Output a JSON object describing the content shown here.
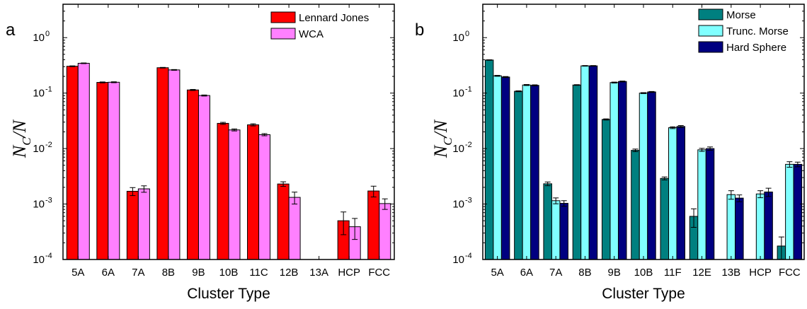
{
  "chart_data": [
    {
      "panel_letter": "a",
      "type": "bar",
      "scale": "log",
      "xlabel": "Cluster Type",
      "ylabel": {
        "main": "N",
        "sub": "C",
        "rest": "/N"
      },
      "ylim": [
        0.0001,
        4
      ],
      "yticks": [
        0.0001,
        0.001,
        0.01,
        0.1,
        1
      ],
      "categories": [
        "5A",
        "6A",
        "7A",
        "8B",
        "9B",
        "10B",
        "11C",
        "12B",
        "13A",
        "HCP",
        "FCC"
      ],
      "legend_position": "top-right",
      "series": [
        {
          "name": "Lennard Jones",
          "color": "#ff0000",
          "values": [
            0.305,
            0.156,
            0.0017,
            0.287,
            0.114,
            0.0285,
            0.0268,
            0.0023,
            null,
            0.0005,
            0.00172
          ],
          "errors": [
            0.005,
            0.003,
            0.00028,
            0.004,
            0.0025,
            0.0012,
            0.0012,
            0.00022,
            null,
            0.00022,
            0.00038
          ]
        },
        {
          "name": "WCA",
          "color": "#ff80ff",
          "values": [
            0.345,
            0.157,
            0.00188,
            0.262,
            0.0905,
            0.0217,
            0.0178,
            0.00132,
            null,
            0.00039,
            0.00102
          ],
          "errors": [
            0.005,
            0.003,
            0.00025,
            0.004,
            0.002,
            0.0009,
            0.0008,
            0.00032,
            null,
            0.00016,
            0.00022
          ]
        }
      ]
    },
    {
      "panel_letter": "b",
      "type": "bar",
      "scale": "log",
      "xlabel": "Cluster Type",
      "ylabel": {
        "main": "N",
        "sub": "C",
        "rest": "/N"
      },
      "ylim": [
        0.0001,
        4
      ],
      "yticks": [
        0.0001,
        0.001,
        0.01,
        0.1,
        1
      ],
      "categories": [
        "5A",
        "6A",
        "7A",
        "8B",
        "9B",
        "10B",
        "11F",
        "12E",
        "13B",
        "HCP",
        "FCC"
      ],
      "legend_position": "top-right",
      "series": [
        {
          "name": "Morse",
          "color": "#008080",
          "values": [
            0.395,
            0.108,
            0.00232,
            0.14,
            0.0335,
            0.0093,
            0.0029,
            0.0006,
            null,
            null,
            0.000175
          ],
          "errors": [
            0.004,
            0.002,
            0.00018,
            0.002,
            0.0008,
            0.0005,
            0.00018,
            0.00022,
            null,
            null,
            8e-05
          ]
        },
        {
          "name": "Trunc. Morse",
          "color": "#80ffff",
          "values": [
            0.205,
            0.14,
            0.00115,
            0.31,
            0.155,
            0.1,
            0.0238,
            0.0095,
            0.00148,
            0.00152,
            0.0052
          ],
          "errors": [
            0.004,
            0.003,
            0.00014,
            0.004,
            0.003,
            0.002,
            0.0009,
            0.0006,
            0.00026,
            0.00022,
            0.0006
          ]
        },
        {
          "name": "Hard Sphere",
          "color": "#000080",
          "values": [
            0.195,
            0.138,
            0.00103,
            0.31,
            0.162,
            0.105,
            0.025,
            0.01,
            0.00128,
            0.00165,
            0.0052
          ],
          "errors": [
            0.004,
            0.003,
            0.00012,
            0.004,
            0.003,
            0.002,
            0.001,
            0.0007,
            0.00018,
            0.00028,
            0.0005
          ]
        }
      ]
    }
  ]
}
